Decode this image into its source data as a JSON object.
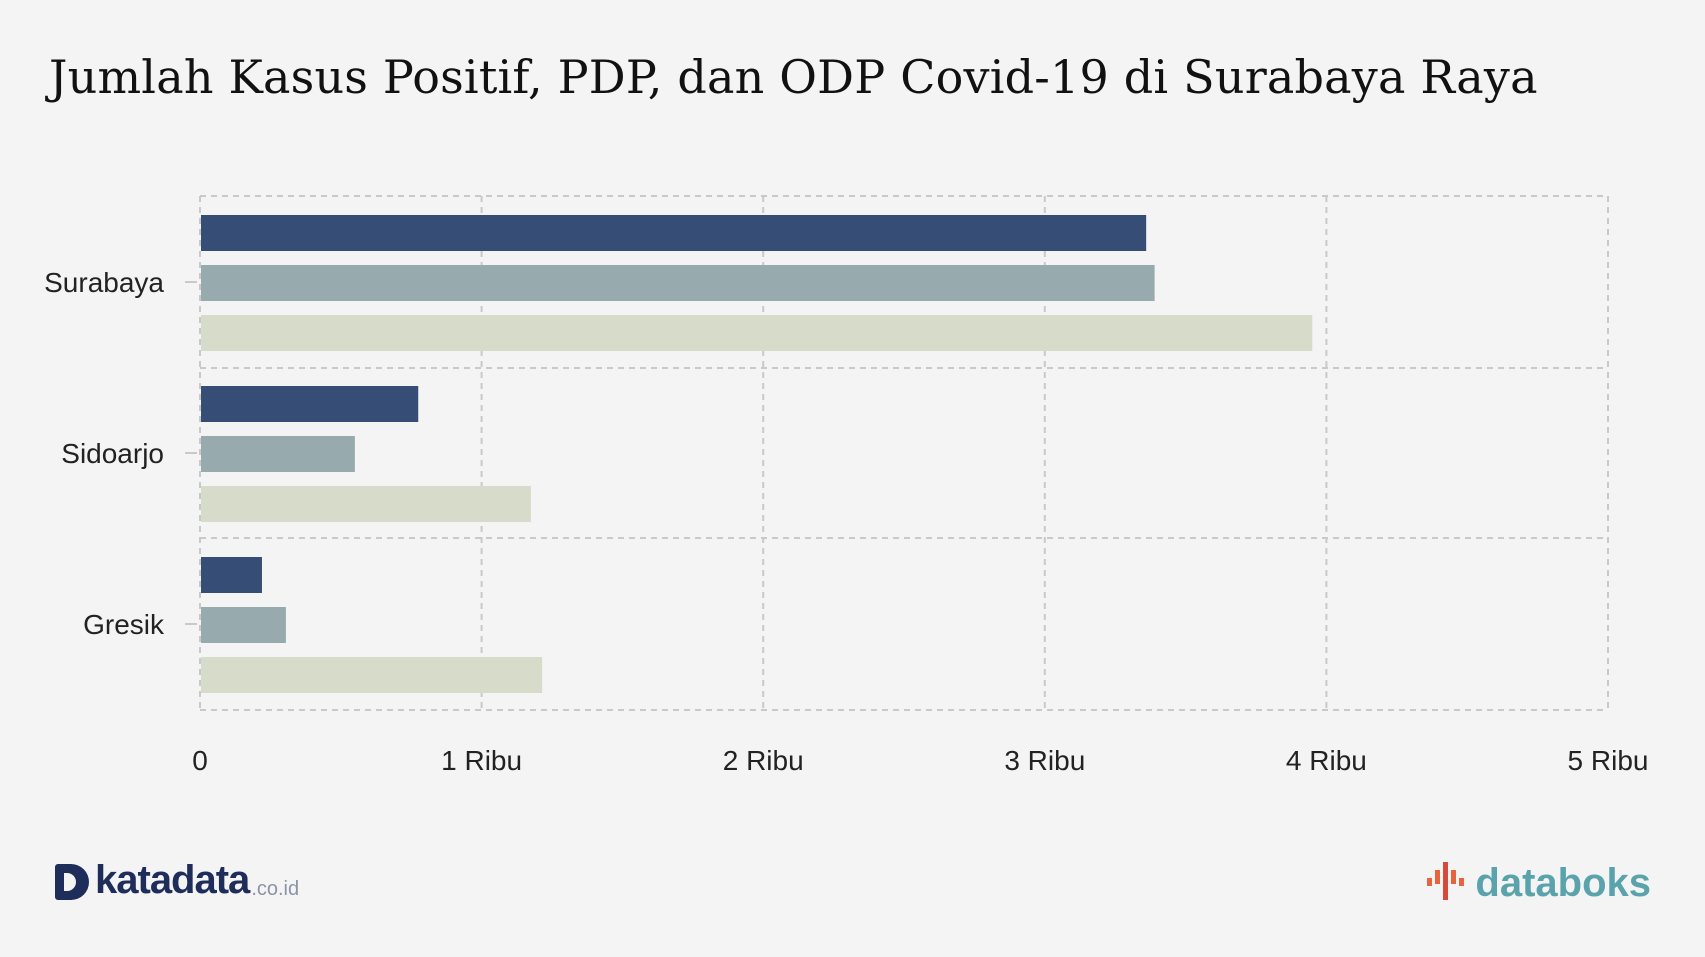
{
  "title": "Jumlah Kasus Positif, PDP, dan ODP Covid-19 di Surabaya Raya",
  "colors": {
    "background": "#f4f4f4",
    "series": [
      "#364d75",
      "#97aaad",
      "#d7dbca"
    ],
    "grid": "#c9c9c9"
  },
  "chart_data": {
    "type": "bar",
    "orientation": "horizontal",
    "categories": [
      "Surabaya",
      "Sidoarjo",
      "Gresik"
    ],
    "series": [
      {
        "values": [
          3360,
          775,
          220
        ]
      },
      {
        "values": [
          3390,
          550,
          305
        ]
      },
      {
        "values": [
          3950,
          1175,
          1215
        ]
      }
    ],
    "x_ticks": [
      "0",
      "1 Ribu",
      "2 Ribu",
      "3 Ribu",
      "4 Ribu",
      "5 Ribu"
    ],
    "xlim": [
      0,
      5000
    ],
    "grid": true,
    "legend": false
  },
  "branding": {
    "left_logo": "katadata",
    "left_logo_suffix": ".co.id",
    "right_logo": "databoks"
  }
}
